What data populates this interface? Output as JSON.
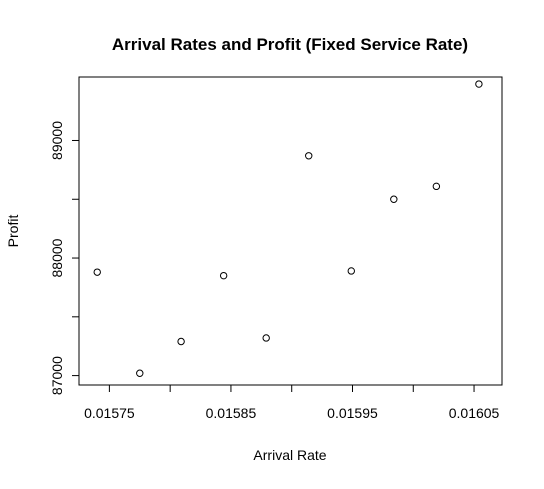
{
  "chart_data": {
    "type": "scatter",
    "title": "Arrival Rates and Profit (Fixed Service Rate)",
    "xlabel": "Arrival Rate",
    "ylabel": "Profit",
    "xlim": [
      0.015725,
      0.016073
    ],
    "ylim": [
      86920,
      89540
    ],
    "x_ticks": [
      0.01575,
      0.01585,
      0.01595,
      0.01605
    ],
    "x_tick_labels": [
      "0.01575",
      "0.01585",
      "0.01595",
      "0.01605"
    ],
    "x_minor_ticks": [
      0.0158,
      0.0159,
      0.016
    ],
    "y_ticks": [
      87000,
      88000,
      89000
    ],
    "y_tick_labels": [
      "87000",
      "88000",
      "89000"
    ],
    "y_minor_ticks": [
      87500,
      88500
    ],
    "marker": "open-circle",
    "grid": false,
    "legend": "none",
    "points": [
      {
        "x": 0.01574,
        "y": 87880
      },
      {
        "x": 0.015775,
        "y": 87020
      },
      {
        "x": 0.015809,
        "y": 87290
      },
      {
        "x": 0.015844,
        "y": 87850
      },
      {
        "x": 0.015879,
        "y": 87320
      },
      {
        "x": 0.015914,
        "y": 88870
      },
      {
        "x": 0.015949,
        "y": 87890
      },
      {
        "x": 0.015984,
        "y": 88500
      },
      {
        "x": 0.016019,
        "y": 88610
      },
      {
        "x": 0.016054,
        "y": 89480
      }
    ]
  },
  "colors": {
    "background": "#ffffff",
    "ink": "#000000"
  }
}
